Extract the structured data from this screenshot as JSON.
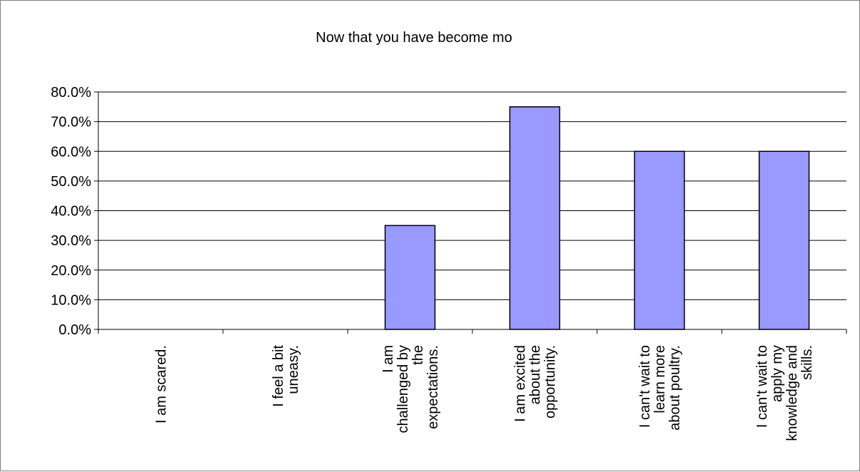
{
  "chart_data": {
    "type": "bar",
    "title": "Now that you have become mo",
    "xlabel": "",
    "ylabel": "",
    "ylim": [
      0,
      80
    ],
    "y_tick_step": 10,
    "y_tick_labels": [
      "0.0%",
      "10.0%",
      "20.0%",
      "30.0%",
      "40.0%",
      "50.0%",
      "60.0%",
      "70.0%",
      "80.0%"
    ],
    "grid": true,
    "legend": "none",
    "categories": [
      [
        "I am scared."
      ],
      [
        "I feel a bit",
        "uneasy."
      ],
      [
        "I am",
        "challenged by",
        "the",
        "expectations."
      ],
      [
        "I am excited",
        "about the",
        "opportunity."
      ],
      [
        "I can't wait to",
        "learn more",
        "about poultry."
      ],
      [
        "I can't wait to",
        "apply my",
        "knowledge and",
        "skills."
      ]
    ],
    "values": [
      0,
      0,
      35,
      75,
      60,
      60
    ],
    "colors": {
      "bar_fill": "#9999FF",
      "bar_stroke": "#000000",
      "gridline": "#000000",
      "frame": "#808080"
    }
  }
}
